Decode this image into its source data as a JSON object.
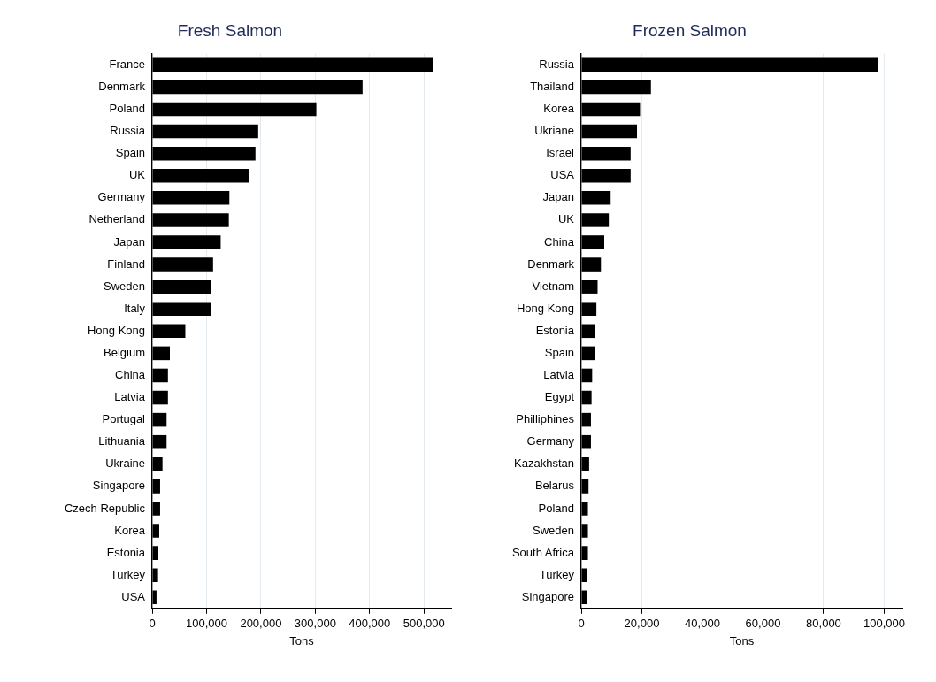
{
  "chart_data": [
    {
      "type": "bar",
      "orientation": "horizontal",
      "title": "Fresh Salmon",
      "xlabel": "Tons",
      "grid": "x",
      "legend": false,
      "categories": [
        "France",
        "Denmark",
        "Poland",
        "Russia",
        "Spain",
        "UK",
        "Germany",
        "Netherland",
        "Japan",
        "Finland",
        "Sweden",
        "Italy",
        "Hong Kong",
        "Belgium",
        "China",
        "Latvia",
        "Portugal",
        "Lithuania",
        "Ukraine",
        "Singapore",
        "Czech Republic",
        "Korea",
        "Estonia",
        "Turkey",
        "USA"
      ],
      "values": [
        517000,
        387000,
        302000,
        195000,
        190000,
        178000,
        142000,
        141000,
        126000,
        112000,
        109000,
        108000,
        61000,
        32500,
        29000,
        29000,
        26500,
        26500,
        19000,
        14600,
        14600,
        13000,
        11400,
        10800,
        8000
      ],
      "color": "#000000",
      "xlim": [
        0,
        550000
      ],
      "xticks": [
        0,
        {
          "value": 100000,
          "label": "100,000"
        },
        {
          "value": 200000,
          "label": "200,000"
        },
        {
          "value": 300000,
          "label": "300,000"
        },
        {
          "value": 400000,
          "label": "400,000"
        },
        {
          "value": 500000,
          "label": "500,000"
        }
      ]
    },
    {
      "type": "bar",
      "orientation": "horizontal",
      "title": "Frozen Salmon",
      "xlabel": "Tons",
      "grid": "x",
      "legend": false,
      "categories": [
        "Russia",
        "Thailand",
        "Korea",
        "Ukriane",
        "Israel",
        "USA",
        "Japan",
        "UK",
        "China",
        "Denmark",
        "Vietnam",
        "Hong Kong",
        "Estonia",
        "Spain",
        "Latvia",
        "Egypt",
        "Philliphines",
        "Germany",
        "Kazakhstan",
        "Belarus",
        "Poland",
        "Sweden",
        "South Africa",
        "Turkey",
        "Singapore"
      ],
      "values": [
        98100,
        23000,
        19400,
        18400,
        16300,
        16300,
        9700,
        9100,
        7600,
        6500,
        5400,
        5000,
        4500,
        4400,
        3600,
        3400,
        3200,
        3200,
        2600,
        2400,
        2200,
        2200,
        2200,
        2000,
        2000
      ],
      "color": "#000000",
      "xlim": [
        0,
        106000
      ],
      "xticks": [
        0,
        {
          "value": 20000,
          "label": "20,000"
        },
        {
          "value": 40000,
          "label": "40,000"
        },
        {
          "value": 60000,
          "label": "60,000"
        },
        {
          "value": 80000,
          "label": "80,000"
        },
        {
          "value": 100000,
          "label": "100,000"
        }
      ]
    }
  ]
}
